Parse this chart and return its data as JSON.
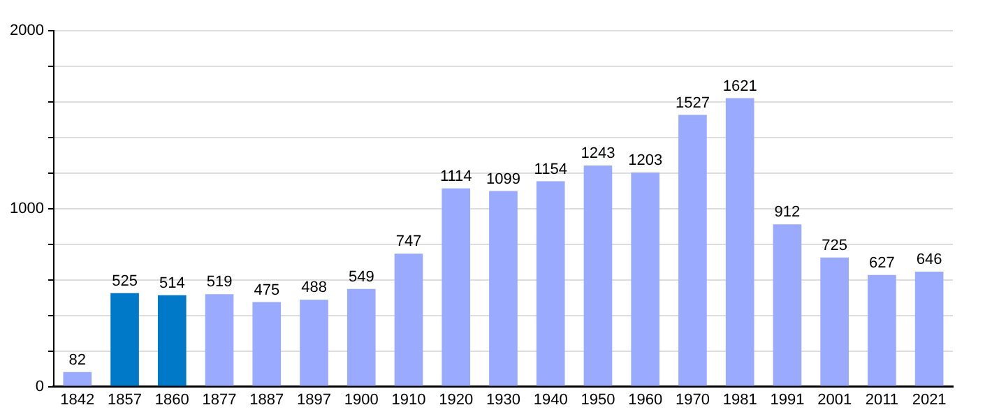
{
  "chart_data": {
    "type": "bar",
    "categories": [
      "1842",
      "1857",
      "1860",
      "1877",
      "1887",
      "1897",
      "1900",
      "1910",
      "1920",
      "1930",
      "1940",
      "1950",
      "1960",
      "1970",
      "1981",
      "1991",
      "2001",
      "2011",
      "2021"
    ],
    "values": [
      82,
      525,
      514,
      519,
      475,
      488,
      549,
      747,
      1114,
      1099,
      1154,
      1243,
      1203,
      1527,
      1621,
      912,
      725,
      627,
      646
    ],
    "colors": [
      "#99aaff",
      "#0079c9",
      "#0079c9",
      "#99aaff",
      "#99aaff",
      "#99aaff",
      "#99aaff",
      "#99aaff",
      "#99aaff",
      "#99aaff",
      "#99aaff",
      "#99aaff",
      "#99aaff",
      "#99aaff",
      "#99aaff",
      "#99aaff",
      "#99aaff",
      "#99aaff",
      "#99aaff"
    ],
    "ylim": [
      0,
      2000
    ],
    "yticks": [
      0,
      {
        "value": 200,
        "label": null
      },
      {
        "value": 400,
        "label": null
      },
      {
        "value": 600,
        "label": null
      },
      {
        "value": 800,
        "label": null
      },
      1000,
      {
        "value": 1200,
        "label": null
      },
      {
        "value": 1400,
        "label": null
      },
      {
        "value": 1600,
        "label": null
      },
      {
        "value": 1800,
        "label": null
      },
      2000
    ],
    "grid": "y",
    "data_labels": true,
    "legend": false
  }
}
